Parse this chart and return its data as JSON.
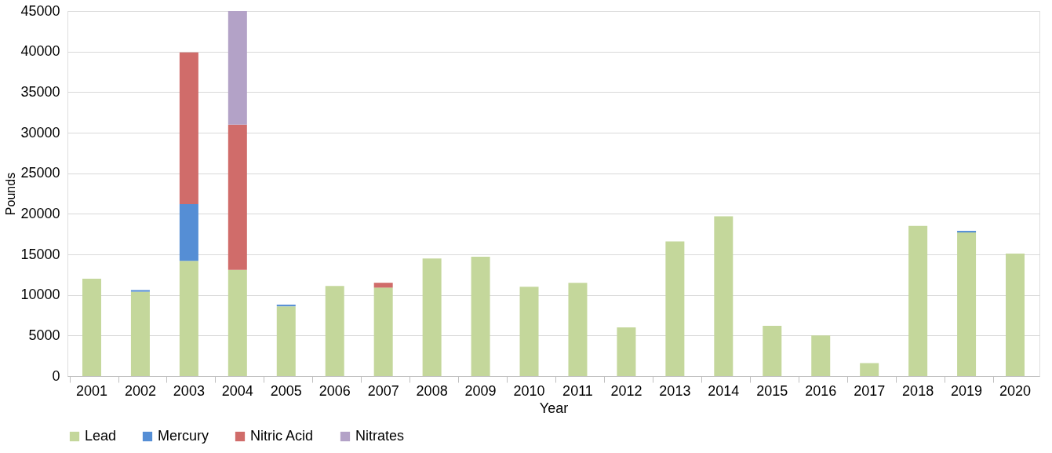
{
  "chart_data": {
    "type": "bar",
    "stacked": true,
    "xlabel": "Year",
    "ylabel": "Pounds",
    "categories": [
      "2001",
      "2002",
      "2003",
      "2004",
      "2005",
      "2006",
      "2007",
      "2008",
      "2009",
      "2010",
      "2011",
      "2012",
      "2013",
      "2014",
      "2015",
      "2016",
      "2017",
      "2018",
      "2019",
      "2020"
    ],
    "series": [
      {
        "name": "Lead",
        "color": "#c4d79b",
        "values": [
          12000,
          10400,
          14200,
          13100,
          8600,
          11100,
          10900,
          14500,
          14700,
          11000,
          11500,
          6000,
          16600,
          19700,
          6200,
          5000,
          1600,
          18500,
          17700,
          15100
        ]
      },
      {
        "name": "Mercury",
        "color": "#558ed5",
        "values": [
          null,
          200,
          7000,
          null,
          200,
          null,
          null,
          null,
          null,
          null,
          null,
          null,
          null,
          null,
          null,
          null,
          null,
          null,
          200,
          null
        ]
      },
      {
        "name": "Nitric Acid",
        "color": "#d06c6a",
        "values": [
          null,
          null,
          18700,
          17900,
          null,
          null,
          600,
          null,
          null,
          null,
          null,
          null,
          null,
          null,
          null,
          null,
          null,
          null,
          null,
          null
        ]
      },
      {
        "name": "Nitrates",
        "color": "#b3a2c7",
        "values": [
          null,
          null,
          null,
          14000,
          null,
          null,
          null,
          null,
          null,
          null,
          null,
          null,
          null,
          null,
          null,
          null,
          null,
          null,
          null,
          null
        ]
      }
    ],
    "ylim": [
      0,
      45000
    ],
    "yticks": [
      0,
      5000,
      10000,
      15000,
      20000,
      25000,
      30000,
      35000,
      40000,
      45000
    ],
    "grid": "y",
    "legend": "bottom"
  }
}
